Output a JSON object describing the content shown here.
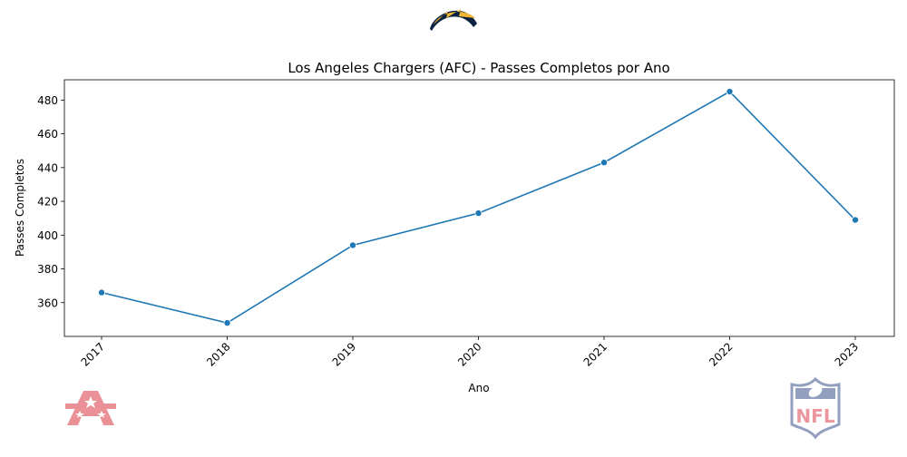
{
  "chart_data": {
    "type": "line",
    "title": "Los Angeles Chargers (AFC) - Passes Completos por Ano",
    "xlabel": "Ano",
    "ylabel": "Passes Completos",
    "x": [
      "2017",
      "2018",
      "2019",
      "2020",
      "2021",
      "2022",
      "2023"
    ],
    "series": [
      {
        "values": [
          366,
          348,
          394,
          413,
          443,
          485,
          409
        ]
      }
    ],
    "ylim": [
      340,
      492
    ],
    "yticks": [
      360,
      380,
      400,
      420,
      440,
      460,
      480
    ],
    "grid": false,
    "legend": "none",
    "colors": {
      "line": "#1f77b4",
      "marker": "#1f77b4"
    }
  },
  "logos": {
    "team": {
      "icon": "chargers-bolt-logo",
      "colors": [
        "#0080c6",
        "#ffc20e"
      ]
    },
    "conference": {
      "icon": "afc-logo",
      "text": "AFC",
      "color": "#e8848c"
    },
    "league": {
      "icon": "nfl-shield-logo",
      "text": "NFL",
      "colors": [
        "#7f8fb3",
        "#e8848c"
      ]
    }
  }
}
